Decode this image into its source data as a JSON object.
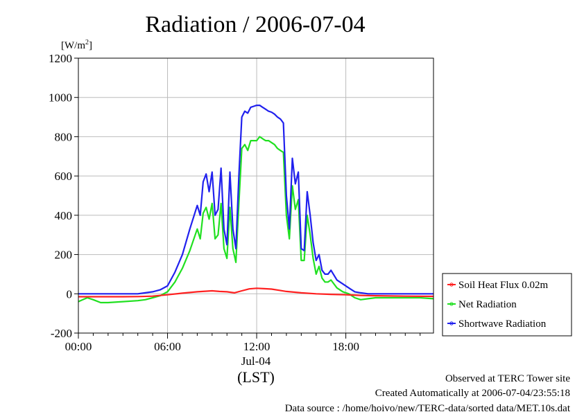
{
  "chart_data": {
    "type": "line",
    "title": "Radiation / 2006-07-04",
    "ylabel_unit": "[W/m",
    "ylabel_unit_sup": "2",
    "ylabel_unit_close": "]",
    "xlabel": "(LST)",
    "date_label": "Jul-04",
    "ylim": [
      -200,
      1200
    ],
    "xlim": [
      0,
      23.9
    ],
    "yticks": [
      -200,
      0,
      200,
      400,
      600,
      800,
      1000,
      1200
    ],
    "ytick_labels": [
      "-200",
      "0",
      "200",
      "400",
      "600",
      "800",
      "1000",
      "1200"
    ],
    "xticks": [
      0,
      6,
      12,
      18
    ],
    "xtick_labels": [
      "00:00",
      "06:00",
      "12:00",
      "18:00"
    ],
    "grid": true,
    "legend": "outside-right-bottom",
    "series": [
      {
        "name": "Soil Heat Flux 0.02m",
        "color": "#ff2020",
        "x": [
          0,
          3,
          4,
          5,
          6,
          7,
          8,
          9,
          9.5,
          10,
          10.5,
          11,
          11.5,
          12,
          12.5,
          13,
          13.5,
          14,
          15,
          16,
          17,
          18,
          19,
          20,
          22,
          23.9
        ],
        "y": [
          -15,
          -15,
          -14,
          -12,
          -5,
          3,
          10,
          15,
          12,
          10,
          5,
          15,
          25,
          28,
          26,
          24,
          18,
          12,
          5,
          0,
          -3,
          -5,
          -8,
          -10,
          -12,
          -13
        ]
      },
      {
        "name": "Net Radiation",
        "color": "#20e020",
        "x": [
          0,
          0.3,
          0.6,
          1,
          1.5,
          2,
          3,
          4,
          4.5,
          5,
          5.5,
          6,
          6.5,
          7,
          7.5,
          8,
          8.2,
          8.4,
          8.6,
          8.8,
          9,
          9.2,
          9.4,
          9.6,
          9.8,
          10,
          10.2,
          10.4,
          10.6,
          10.8,
          11,
          11.2,
          11.4,
          11.6,
          11.8,
          12,
          12.2,
          12.4,
          12.6,
          12.8,
          13,
          13.2,
          13.4,
          13.6,
          13.8,
          14,
          14.2,
          14.4,
          14.6,
          14.8,
          15,
          15.2,
          15.4,
          15.6,
          15.8,
          16,
          16.2,
          16.4,
          16.6,
          16.8,
          17,
          17.4,
          17.8,
          18.2,
          18.6,
          19,
          19.5,
          20,
          21,
          22,
          23,
          23.9
        ],
        "y": [
          -40,
          -30,
          -20,
          -30,
          -45,
          -45,
          -40,
          -35,
          -30,
          -20,
          -10,
          10,
          60,
          130,
          220,
          330,
          280,
          410,
          440,
          380,
          460,
          280,
          300,
          460,
          230,
          180,
          440,
          230,
          160,
          460,
          740,
          760,
          730,
          780,
          780,
          780,
          800,
          790,
          780,
          780,
          770,
          760,
          740,
          730,
          720,
          400,
          280,
          550,
          430,
          480,
          170,
          170,
          400,
          300,
          180,
          100,
          140,
          80,
          60,
          60,
          70,
          30,
          10,
          0,
          -20,
          -30,
          -25,
          -20,
          -20,
          -20,
          -20,
          -25
        ]
      },
      {
        "name": "Shortwave Radiation",
        "color": "#2020ee",
        "x": [
          0,
          3,
          4,
          4.5,
          5,
          5.5,
          6,
          6.5,
          7,
          7.5,
          8,
          8.2,
          8.4,
          8.6,
          8.8,
          9,
          9.2,
          9.4,
          9.6,
          9.8,
          10,
          10.2,
          10.4,
          10.6,
          10.8,
          11,
          11.2,
          11.4,
          11.6,
          11.8,
          12,
          12.2,
          12.4,
          12.6,
          12.8,
          13,
          13.2,
          13.4,
          13.6,
          13.8,
          14,
          14.2,
          14.4,
          14.6,
          14.8,
          15,
          15.2,
          15.4,
          15.6,
          15.8,
          16,
          16.2,
          16.4,
          16.6,
          16.8,
          17,
          17.4,
          17.8,
          18.2,
          18.6,
          19,
          19.5,
          20,
          21,
          22,
          23,
          23.9
        ],
        "y": [
          0,
          0,
          0,
          5,
          10,
          20,
          40,
          110,
          200,
          330,
          450,
          400,
          570,
          610,
          520,
          620,
          400,
          430,
          640,
          330,
          250,
          620,
          330,
          230,
          600,
          900,
          930,
          920,
          950,
          955,
          960,
          960,
          950,
          940,
          930,
          925,
          915,
          900,
          890,
          870,
          500,
          330,
          690,
          560,
          620,
          230,
          220,
          520,
          400,
          260,
          170,
          200,
          120,
          100,
          100,
          120,
          70,
          50,
          30,
          10,
          5,
          0,
          0,
          0,
          0,
          0,
          0
        ]
      }
    ]
  },
  "footer": {
    "line1": "Observed at TERC Tower site",
    "line2": "Created Automatically at 2006-07-04/23:55:18",
    "line3": "Data source : /home/hoivo/new/TERC-data/sorted  data/MET.10s.dat"
  }
}
